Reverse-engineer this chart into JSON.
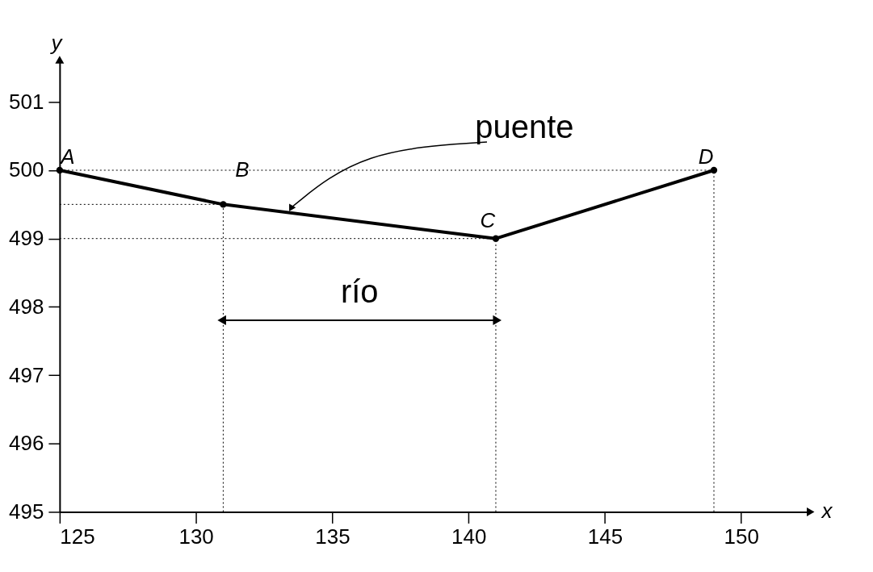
{
  "chart_data": {
    "type": "line",
    "xlabel": "x",
    "ylabel": "y",
    "x": [
      125,
      131,
      141,
      149
    ],
    "series": [
      {
        "color": "#000000",
        "values": [
          500,
          499.5,
          499,
          500
        ]
      }
    ],
    "marker": "circle",
    "line_style": "solid",
    "grid": false,
    "xlim": [
      125,
      152.5
    ],
    "ylim": [
      495,
      501.6
    ],
    "xticks": [
      125,
      130,
      135,
      140,
      145,
      150
    ],
    "yticks": [
      495,
      496,
      497,
      498,
      499,
      500,
      501
    ],
    "ref_lines": [
      {
        "axis": "y",
        "value": 500,
        "color": "#000000",
        "line_style": "dotted"
      },
      {
        "axis": "y",
        "value": 499.5,
        "color": "#000000",
        "line_style": "dotted"
      },
      {
        "axis": "y",
        "value": 499,
        "color": "#000000",
        "line_style": "dotted"
      },
      {
        "axis": "x",
        "value": 131,
        "color": "#000000",
        "line_style": "dotted"
      },
      {
        "axis": "x",
        "value": 141,
        "color": "#000000",
        "line_style": "dotted"
      },
      {
        "axis": "x",
        "value": 149,
        "color": "#000000",
        "line_style": "dotted"
      }
    ],
    "annotations": [
      {
        "text": "A",
        "x": 125,
        "y": 500
      },
      {
        "text": "B",
        "x": 131.7,
        "y": 500
      },
      {
        "text": "C",
        "x": 141,
        "y": 499
      },
      {
        "text": "D",
        "x": 149,
        "y": 500
      },
      {
        "text": "puente",
        "x": 133.5,
        "y": 499.375
      },
      "río"
    ]
  }
}
